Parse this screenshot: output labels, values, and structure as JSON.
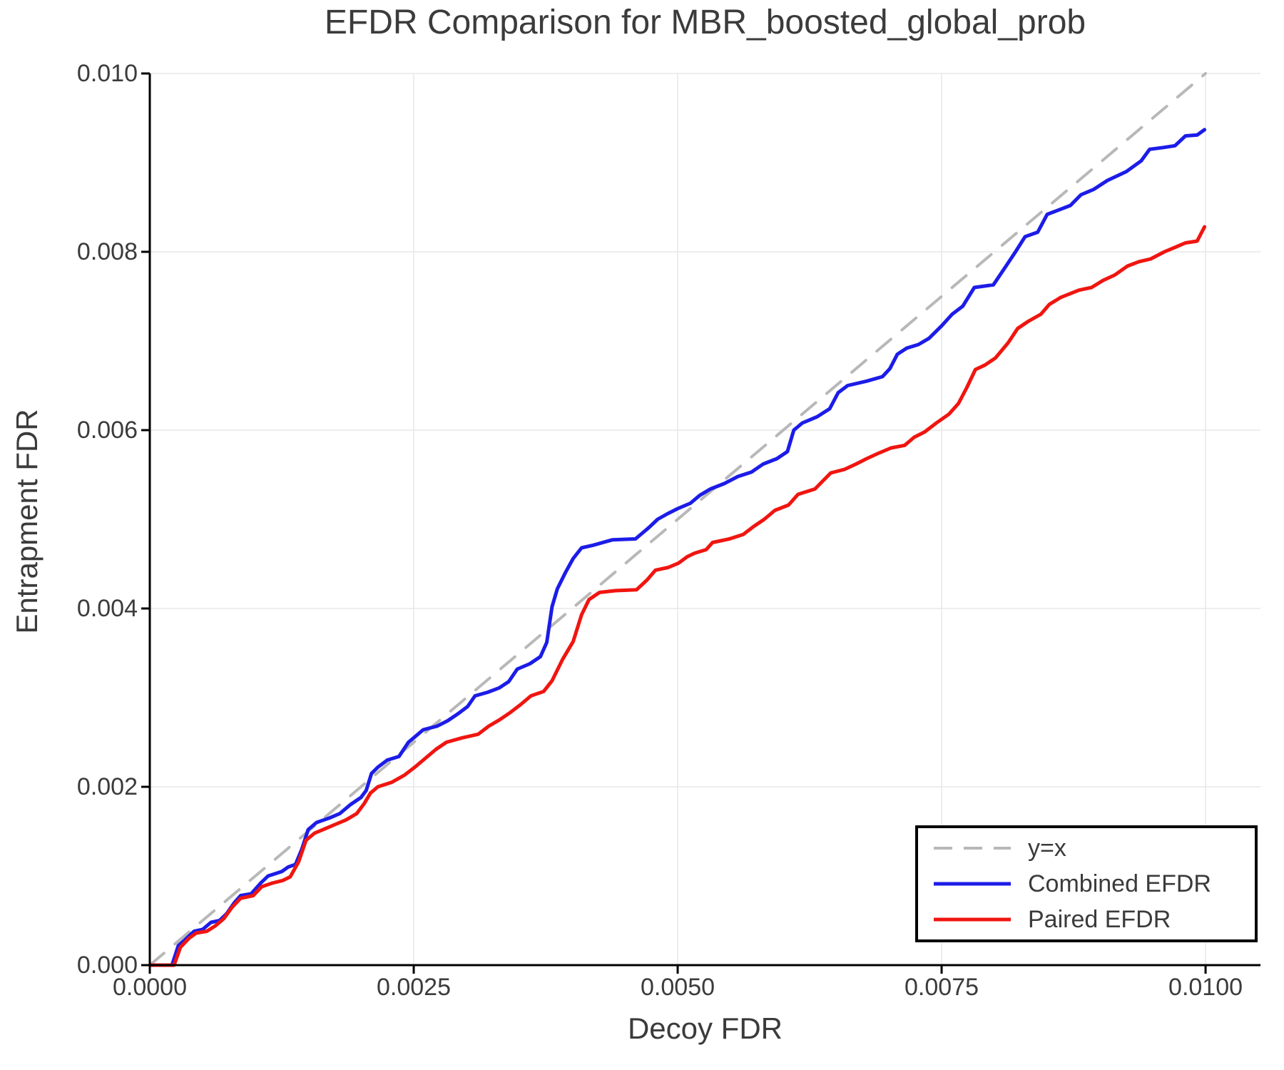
{
  "title": "EFDR Comparison for MBR_boosted_global_prob",
  "axes": {
    "xlabel": "Decoy FDR",
    "ylabel": "Entrapment FDR"
  },
  "colors": {
    "background": "#ffffff",
    "axis_text": "#3b3b3b",
    "spine": "#000000",
    "grid": "#e7e7e7",
    "identity_line": "#b8b8b8",
    "combined_efdr": "#1c1ce8",
    "paired_efdr": "#f01510"
  },
  "legend": {
    "position": "lower right",
    "entries": [
      "y=x",
      "Combined EFDR",
      "Paired EFDR"
    ]
  },
  "chart_data": {
    "type": "line",
    "title": "EFDR Comparison for MBR_boosted_global_prob",
    "xlabel": "Decoy FDR",
    "ylabel": "Entrapment FDR",
    "xlim": [
      0,
      0.01052
    ],
    "ylim": [
      0,
      0.01
    ],
    "grid": true,
    "legend_position": "lower right",
    "x_ticks": [
      {
        "v": 0.0,
        "label": "0.0000"
      },
      {
        "v": 0.0025,
        "label": "0.0025"
      },
      {
        "v": 0.005,
        "label": "0.0050"
      },
      {
        "v": 0.0075,
        "label": "0.0075"
      },
      {
        "v": 0.01,
        "label": "0.0100"
      }
    ],
    "y_ticks": [
      {
        "v": 0.0,
        "label": "0.000"
      },
      {
        "v": 0.002,
        "label": "0.002"
      },
      {
        "v": 0.004,
        "label": "0.004"
      },
      {
        "v": 0.006,
        "label": "0.006"
      },
      {
        "v": 0.008,
        "label": "0.008"
      },
      {
        "v": 0.01,
        "label": "0.010"
      }
    ],
    "series": [
      {
        "name": "y=x",
        "style": "dashed",
        "color": "#b8b8b8",
        "points": [
          [
            0.0,
            0.0
          ],
          [
            0.01,
            0.01
          ]
        ]
      },
      {
        "name": "Combined EFDR",
        "style": "solid",
        "color": "#1c1ce8",
        "points": [
          [
            0.0,
            0.0
          ],
          [
            0.00021,
            0.0
          ],
          [
            0.00027,
            0.00022
          ],
          [
            0.00033,
            0.00028
          ],
          [
            0.00042,
            0.00038
          ],
          [
            0.0005,
            0.0004
          ],
          [
            0.00058,
            0.00048
          ],
          [
            0.00066,
            0.0005
          ],
          [
            0.00073,
            0.00058
          ],
          [
            0.0008,
            0.0007
          ],
          [
            0.00086,
            0.00078
          ],
          [
            0.00096,
            0.0008
          ],
          [
            0.00105,
            0.00092
          ],
          [
            0.00112,
            0.001
          ],
          [
            0.00125,
            0.00105
          ],
          [
            0.00131,
            0.0011
          ],
          [
            0.00138,
            0.00113
          ],
          [
            0.00144,
            0.0013
          ],
          [
            0.0015,
            0.00152
          ],
          [
            0.00158,
            0.0016
          ],
          [
            0.0017,
            0.00165
          ],
          [
            0.0018,
            0.0017
          ],
          [
            0.0019,
            0.0018
          ],
          [
            0.002,
            0.00188
          ],
          [
            0.00205,
            0.00196
          ],
          [
            0.0021,
            0.00215
          ],
          [
            0.00216,
            0.00222
          ],
          [
            0.00225,
            0.0023
          ],
          [
            0.00236,
            0.00234
          ],
          [
            0.00245,
            0.0025
          ],
          [
            0.00252,
            0.00257
          ],
          [
            0.00259,
            0.00264
          ],
          [
            0.00272,
            0.00268
          ],
          [
            0.00282,
            0.00274
          ],
          [
            0.00292,
            0.00282
          ],
          [
            0.00301,
            0.0029
          ],
          [
            0.00308,
            0.00302
          ],
          [
            0.0032,
            0.00306
          ],
          [
            0.00331,
            0.00311
          ],
          [
            0.0034,
            0.00318
          ],
          [
            0.00348,
            0.00332
          ],
          [
            0.0036,
            0.00338
          ],
          [
            0.0037,
            0.00346
          ],
          [
            0.00376,
            0.00362
          ],
          [
            0.00381,
            0.00402
          ],
          [
            0.00386,
            0.00422
          ],
          [
            0.00394,
            0.00441
          ],
          [
            0.00401,
            0.00456
          ],
          [
            0.00409,
            0.00468
          ],
          [
            0.0042,
            0.00471
          ],
          [
            0.00438,
            0.00477
          ],
          [
            0.0046,
            0.00478
          ],
          [
            0.00468,
            0.00486
          ],
          [
            0.00473,
            0.00491
          ],
          [
            0.00481,
            0.005
          ],
          [
            0.0049,
            0.00506
          ],
          [
            0.005,
            0.00512
          ],
          [
            0.00512,
            0.00518
          ],
          [
            0.00521,
            0.00527
          ],
          [
            0.00531,
            0.00534
          ],
          [
            0.00544,
            0.0054
          ],
          [
            0.00557,
            0.00548
          ],
          [
            0.0057,
            0.00553
          ],
          [
            0.00581,
            0.00562
          ],
          [
            0.00594,
            0.00568
          ],
          [
            0.00604,
            0.00576
          ],
          [
            0.0061,
            0.006
          ],
          [
            0.00618,
            0.00608
          ],
          [
            0.00632,
            0.00615
          ],
          [
            0.00644,
            0.00624
          ],
          [
            0.00652,
            0.00642
          ],
          [
            0.00661,
            0.0065
          ],
          [
            0.00679,
            0.00655
          ],
          [
            0.00694,
            0.0066
          ],
          [
            0.00701,
            0.00669
          ],
          [
            0.00708,
            0.00685
          ],
          [
            0.00717,
            0.00692
          ],
          [
            0.00728,
            0.00696
          ],
          [
            0.00738,
            0.00703
          ],
          [
            0.0075,
            0.00717
          ],
          [
            0.0076,
            0.0073
          ],
          [
            0.0077,
            0.00739
          ],
          [
            0.00781,
            0.0076
          ],
          [
            0.00799,
            0.00763
          ],
          [
            0.00811,
            0.00784
          ],
          [
            0.0082,
            0.008
          ],
          [
            0.00829,
            0.00817
          ],
          [
            0.00841,
            0.00822
          ],
          [
            0.0085,
            0.00842
          ],
          [
            0.00861,
            0.00847
          ],
          [
            0.00872,
            0.00852
          ],
          [
            0.00882,
            0.00864
          ],
          [
            0.00894,
            0.0087
          ],
          [
            0.00907,
            0.0088
          ],
          [
            0.00925,
            0.0089
          ],
          [
            0.00939,
            0.00902
          ],
          [
            0.00947,
            0.00915
          ],
          [
            0.0096,
            0.00917
          ],
          [
            0.00971,
            0.00919
          ],
          [
            0.00981,
            0.0093
          ],
          [
            0.00992,
            0.00931
          ],
          [
            0.00999,
            0.00937
          ]
        ]
      },
      {
        "name": "Paired EFDR",
        "style": "solid",
        "color": "#f01510",
        "points": [
          [
            0.0,
            0.0
          ],
          [
            0.00023,
            0.0
          ],
          [
            0.00029,
            0.0002
          ],
          [
            0.00037,
            0.0003
          ],
          [
            0.00044,
            0.00036
          ],
          [
            0.00054,
            0.00038
          ],
          [
            0.00062,
            0.00044
          ],
          [
            0.0007,
            0.00052
          ],
          [
            0.00078,
            0.00065
          ],
          [
            0.00086,
            0.00075
          ],
          [
            0.00098,
            0.00078
          ],
          [
            0.00106,
            0.00088
          ],
          [
            0.00116,
            0.00092
          ],
          [
            0.00126,
            0.00095
          ],
          [
            0.00133,
            0.00099
          ],
          [
            0.00141,
            0.00116
          ],
          [
            0.00148,
            0.0014
          ],
          [
            0.00156,
            0.00148
          ],
          [
            0.00166,
            0.00153
          ],
          [
            0.00176,
            0.00158
          ],
          [
            0.00186,
            0.00163
          ],
          [
            0.00196,
            0.0017
          ],
          [
            0.00203,
            0.00181
          ],
          [
            0.00209,
            0.00193
          ],
          [
            0.00216,
            0.002
          ],
          [
            0.00229,
            0.00205
          ],
          [
            0.00241,
            0.00213
          ],
          [
            0.00251,
            0.00222
          ],
          [
            0.00261,
            0.00232
          ],
          [
            0.00271,
            0.00242
          ],
          [
            0.00281,
            0.0025
          ],
          [
            0.00296,
            0.00255
          ],
          [
            0.00311,
            0.00259
          ],
          [
            0.00321,
            0.00268
          ],
          [
            0.00331,
            0.00275
          ],
          [
            0.00341,
            0.00283
          ],
          [
            0.00351,
            0.00292
          ],
          [
            0.00361,
            0.00302
          ],
          [
            0.00373,
            0.00307
          ],
          [
            0.00381,
            0.00319
          ],
          [
            0.00391,
            0.00343
          ],
          [
            0.00401,
            0.00363
          ],
          [
            0.00409,
            0.00393
          ],
          [
            0.00416,
            0.0041
          ],
          [
            0.00426,
            0.00418
          ],
          [
            0.00441,
            0.0042
          ],
          [
            0.00461,
            0.00421
          ],
          [
            0.00471,
            0.00432
          ],
          [
            0.00479,
            0.00443
          ],
          [
            0.00491,
            0.00446
          ],
          [
            0.00501,
            0.00451
          ],
          [
            0.00509,
            0.00458
          ],
          [
            0.00516,
            0.00462
          ],
          [
            0.00527,
            0.00466
          ],
          [
            0.00533,
            0.00474
          ],
          [
            0.00549,
            0.00478
          ],
          [
            0.00562,
            0.00483
          ],
          [
            0.00572,
            0.00492
          ],
          [
            0.00582,
            0.005
          ],
          [
            0.00592,
            0.0051
          ],
          [
            0.00605,
            0.00516
          ],
          [
            0.00614,
            0.00528
          ],
          [
            0.0063,
            0.00534
          ],
          [
            0.00645,
            0.00552
          ],
          [
            0.00658,
            0.00556
          ],
          [
            0.00669,
            0.00562
          ],
          [
            0.00679,
            0.00568
          ],
          [
            0.0069,
            0.00574
          ],
          [
            0.00702,
            0.0058
          ],
          [
            0.00715,
            0.00583
          ],
          [
            0.00724,
            0.00592
          ],
          [
            0.00734,
            0.00598
          ],
          [
            0.00745,
            0.00608
          ],
          [
            0.00757,
            0.00618
          ],
          [
            0.00766,
            0.0063
          ],
          [
            0.00774,
            0.00648
          ],
          [
            0.00782,
            0.00668
          ],
          [
            0.00791,
            0.00673
          ],
          [
            0.00801,
            0.00681
          ],
          [
            0.00813,
            0.00698
          ],
          [
            0.00822,
            0.00714
          ],
          [
            0.00832,
            0.00722
          ],
          [
            0.00844,
            0.0073
          ],
          [
            0.00852,
            0.00741
          ],
          [
            0.00863,
            0.00749
          ],
          [
            0.0088,
            0.00757
          ],
          [
            0.00892,
            0.0076
          ],
          [
            0.00903,
            0.00768
          ],
          [
            0.00914,
            0.00774
          ],
          [
            0.00926,
            0.00784
          ],
          [
            0.00937,
            0.00789
          ],
          [
            0.00948,
            0.00792
          ],
          [
            0.00961,
            0.008
          ],
          [
            0.00971,
            0.00805
          ],
          [
            0.00981,
            0.0081
          ],
          [
            0.00992,
            0.00812
          ],
          [
            0.00999,
            0.00828
          ]
        ]
      }
    ]
  }
}
